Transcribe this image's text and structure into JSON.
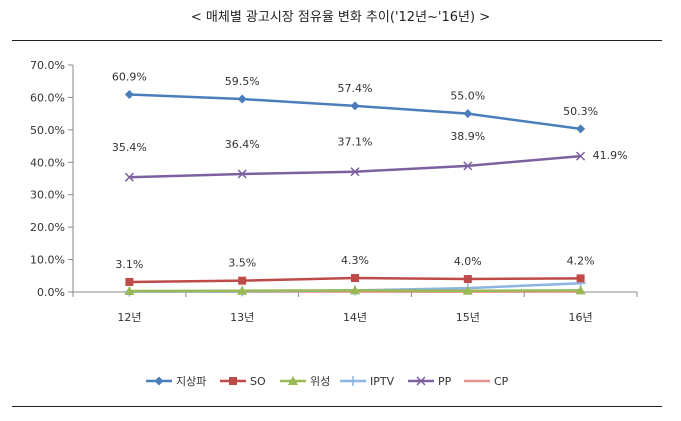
{
  "title": "< 매체별 광고시장 점유율 변화 추이('12년~'16년) >",
  "chart_data": {
    "type": "line",
    "title": "< 매체별 광고시장 점유율 변화 추이('12년~'16년) >",
    "categories": [
      "12년",
      "13년",
      "14년",
      "15년",
      "16년"
    ],
    "ylim": [
      0,
      70
    ],
    "yticks": [
      0,
      10,
      20,
      30,
      40,
      50,
      60,
      70
    ],
    "ytick_labels": [
      "0.0%",
      "10.0%",
      "20.0%",
      "30.0%",
      "40.0%",
      "50.0%",
      "60.0%",
      "70.0%"
    ],
    "grid": false,
    "legend_position": "bottom",
    "series": [
      {
        "name": "지상파",
        "values": [
          60.9,
          59.5,
          57.4,
          55.0,
          50.3
        ],
        "labels": [
          "60.9%",
          "59.5%",
          "57.4%",
          "55.0%",
          "50.3%"
        ],
        "color": "#4a7ebb",
        "marker": "diamond"
      },
      {
        "name": "SO",
        "values": [
          3.1,
          3.5,
          4.3,
          4.0,
          4.2
        ],
        "labels": [
          "3.1%",
          "3.5%",
          "4.3%",
          "4.0%",
          "4.2%"
        ],
        "color": "#be4b48",
        "marker": "square"
      },
      {
        "name": "위성",
        "values": [
          0.3,
          0.4,
          0.5,
          0.4,
          0.5
        ],
        "labels": [],
        "color": "#98b954",
        "marker": "triangle"
      },
      {
        "name": "IPTV",
        "values": [
          0.1,
          0.2,
          0.5,
          1.2,
          2.7
        ],
        "labels": [],
        "color": "#8eb4e3",
        "marker": "plus"
      },
      {
        "name": "PP",
        "values": [
          35.4,
          36.4,
          37.1,
          38.9,
          41.9
        ],
        "labels": [
          "35.4%",
          "36.4%",
          "37.1%",
          "38.9%",
          "41.9%"
        ],
        "color": "#7d60a0",
        "marker": "x"
      },
      {
        "name": "CP",
        "values": [
          0.1,
          0.1,
          0.1,
          0.1,
          0.1
        ],
        "labels": [],
        "color": "#e6928f",
        "marker": "none"
      }
    ]
  }
}
